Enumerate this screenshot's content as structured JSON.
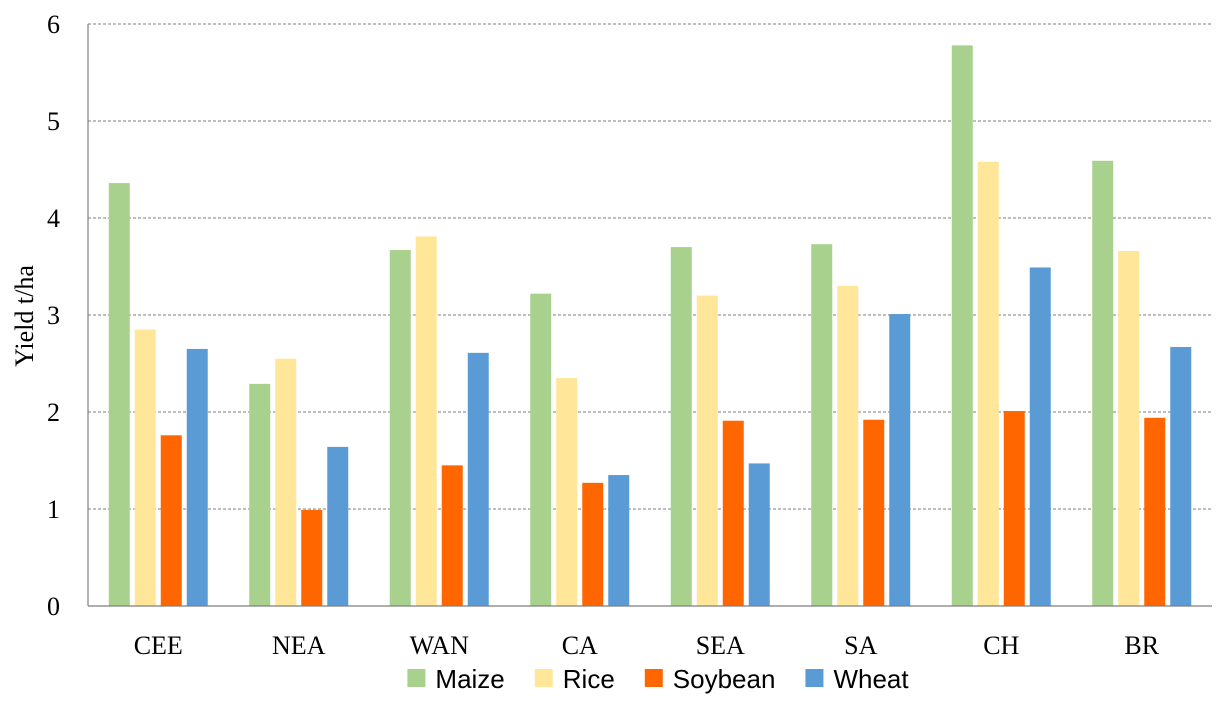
{
  "chart_data": {
    "type": "bar",
    "title": "",
    "xlabel": "",
    "ylabel": "Yield t/ha",
    "ylim": [
      0,
      6
    ],
    "yticks": [
      "0",
      "1",
      "2",
      "3",
      "4",
      "5",
      "6"
    ],
    "grid": true,
    "legend_position": "bottom",
    "categories": [
      "CEE",
      "NEA",
      "WAN",
      "CA",
      "SEA",
      "SA",
      "CH",
      "BR"
    ],
    "series": [
      {
        "name": "Maize",
        "color": "#a9d18e",
        "values": [
          4.36,
          2.29,
          3.67,
          3.22,
          3.7,
          3.73,
          5.78,
          4.59
        ]
      },
      {
        "name": "Rice",
        "color": "#ffe699",
        "values": [
          2.85,
          2.55,
          3.81,
          2.35,
          3.2,
          3.3,
          4.58,
          3.66
        ]
      },
      {
        "name": "Soybean",
        "color": "#ff6600",
        "values": [
          1.76,
          0.99,
          1.45,
          1.27,
          1.91,
          1.92,
          2.01,
          1.94
        ]
      },
      {
        "name": "Wheat",
        "color": "#5b9bd5",
        "values": [
          2.65,
          1.64,
          2.61,
          1.35,
          1.47,
          3.01,
          3.49,
          2.67
        ]
      }
    ]
  }
}
